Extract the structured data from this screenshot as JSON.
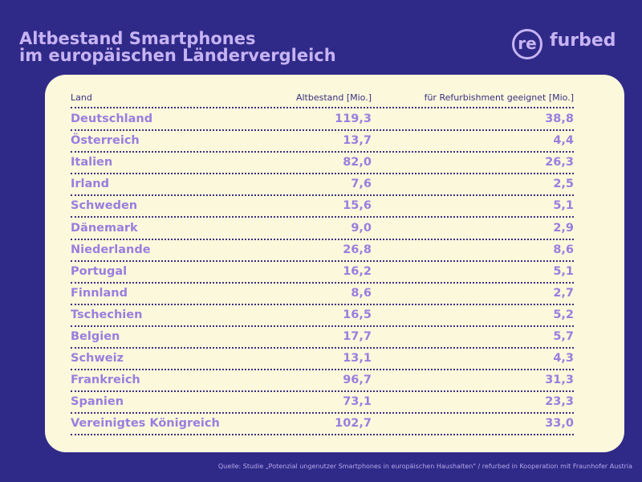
{
  "header": {
    "title_lines": [
      "Altbestand Smartphones",
      "im europäischen Ländervergleich"
    ],
    "logo": {
      "circle": "re",
      "rest": "furbed"
    }
  },
  "table": {
    "columns": [
      "Land",
      "Altbestand [Mio.]",
      "für Refurbishment geeignet [Mio.]"
    ],
    "rows": [
      [
        "Deutschland",
        "119,3",
        "38,8"
      ],
      [
        "Österreich",
        "13,7",
        "4,4"
      ],
      [
        "Italien",
        "82,0",
        "26,3"
      ],
      [
        "Irland",
        "7,6",
        "2,5"
      ],
      [
        "Schweden",
        "15,6",
        "5,1"
      ],
      [
        "Dänemark",
        "9,0",
        "2,9"
      ],
      [
        "Niederlande",
        "26,8",
        "8,6"
      ],
      [
        "Portugal",
        "16,2",
        "5,1"
      ],
      [
        "Finnland",
        "8,6",
        "2,7"
      ],
      [
        "Tschechien",
        "16,5",
        "5,2"
      ],
      [
        "Belgien",
        "17,7",
        "5,7"
      ],
      [
        "Schweiz",
        "13,1",
        "4,3"
      ],
      [
        "Frankreich",
        "96,7",
        "31,3"
      ],
      [
        "Spanien",
        "73,1",
        "23,3"
      ],
      [
        "Vereinigtes Königreich",
        "102,7",
        "33,0"
      ]
    ]
  },
  "footer": {
    "source": "Quelle: Studie „Potenzial ungenutzer Smartphones in europäischen Haushalten\" / refurbed in Kooperation mit Fraunhofer Austria"
  }
}
